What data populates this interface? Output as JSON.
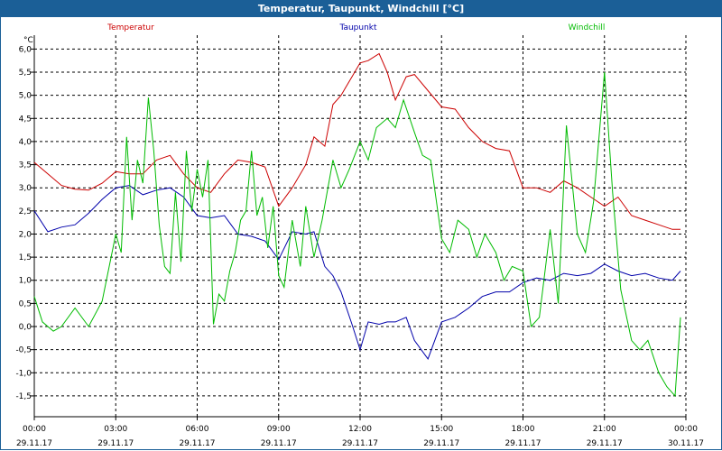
{
  "window": {
    "title": "Temperatur, Taupunkt, Windchill [°C]"
  },
  "chart_data": {
    "type": "line",
    "title": "Temperatur, Taupunkt, Windchill [°C]",
    "ylabel": "°C",
    "ylim": [
      -1.95,
      6.3
    ],
    "yticks": [
      -1.5,
      -1.0,
      -0.5,
      0.0,
      0.5,
      1.0,
      1.5,
      2.0,
      2.5,
      3.0,
      3.5,
      4.0,
      4.5,
      5.0,
      5.5,
      6.0
    ],
    "ytick_labels": [
      "-1,5",
      "-1,0",
      "-0,5",
      "0,0",
      "0,5",
      "1,0",
      "1,5",
      "2,0",
      "2,5",
      "3,0",
      "3,5",
      "4,0",
      "4,5",
      "5,0",
      "5,5",
      "6,0"
    ],
    "xlim": [
      0,
      24
    ],
    "xticks": [
      0,
      3,
      6,
      9,
      12,
      15,
      18,
      21,
      24
    ],
    "xtick_time_labels": [
      "00:00",
      "03:00",
      "06:00",
      "09:00",
      "12:00",
      "15:00",
      "18:00",
      "21:00",
      "00:00"
    ],
    "xtick_date_labels": [
      "29.11.17",
      "29.11.17",
      "29.11.17",
      "29.11.17",
      "29.11.17",
      "29.11.17",
      "29.11.17",
      "29.11.17",
      "30.11.17"
    ],
    "grid": true,
    "legend_position": "top",
    "series": [
      {
        "name": "Temperatur",
        "color": "#cc0000",
        "x": [
          0,
          0.5,
          1,
          1.5,
          2,
          2.5,
          3,
          3.5,
          4,
          4.5,
          5,
          5.5,
          6,
          6.5,
          7,
          7.5,
          8,
          8.5,
          9,
          9.5,
          10,
          10.3,
          10.7,
          11,
          11.3,
          11.7,
          12,
          12.3,
          12.7,
          13,
          13.3,
          13.7,
          14,
          14.5,
          15,
          15.5,
          16,
          16.5,
          17,
          17.5,
          18,
          18.5,
          19,
          19.5,
          20,
          20.5,
          21,
          21.5,
          22,
          22.5,
          23,
          23.5,
          23.8
        ],
        "y": [
          3.55,
          3.3,
          3.05,
          2.97,
          2.95,
          3.1,
          3.35,
          3.3,
          3.3,
          3.6,
          3.7,
          3.3,
          3.0,
          2.9,
          3.3,
          3.6,
          3.55,
          3.45,
          2.6,
          3.0,
          3.5,
          4.1,
          3.9,
          4.8,
          5.0,
          5.4,
          5.7,
          5.75,
          5.9,
          5.5,
          4.9,
          5.4,
          5.45,
          5.1,
          4.75,
          4.7,
          4.3,
          4.0,
          3.85,
          3.8,
          3.0,
          3.0,
          2.9,
          3.15,
          3.0,
          2.8,
          2.6,
          2.8,
          2.4,
          2.3,
          2.2,
          2.1,
          2.1
        ]
      },
      {
        "name": "Taupunkt",
        "color": "#0000aa",
        "x": [
          0,
          0.5,
          1,
          1.5,
          2,
          2.5,
          3,
          3.5,
          4,
          4.5,
          5,
          5.5,
          6,
          6.5,
          7,
          7.5,
          8,
          8.5,
          9,
          9.5,
          10,
          10.3,
          10.7,
          11,
          11.3,
          11.7,
          12,
          12.3,
          12.7,
          13,
          13.3,
          13.7,
          14,
          14.5,
          15,
          15.5,
          16,
          16.5,
          17,
          17.5,
          18,
          18.5,
          19,
          19.5,
          20,
          20.5,
          21,
          21.5,
          22,
          22.5,
          23,
          23.5,
          23.8
        ],
        "y": [
          2.5,
          2.05,
          2.15,
          2.2,
          2.45,
          2.75,
          3.0,
          3.05,
          2.85,
          2.95,
          3.0,
          2.8,
          2.4,
          2.35,
          2.4,
          2.0,
          1.95,
          1.85,
          1.45,
          2.05,
          2.0,
          2.05,
          1.3,
          1.1,
          0.75,
          0.05,
          -0.5,
          0.1,
          0.05,
          0.1,
          0.1,
          0.2,
          -0.3,
          -0.7,
          0.1,
          0.2,
          0.4,
          0.65,
          0.75,
          0.75,
          0.95,
          1.05,
          1.0,
          1.15,
          1.1,
          1.15,
          1.35,
          1.2,
          1.1,
          1.15,
          1.05,
          1.0,
          1.2
        ]
      },
      {
        "name": "Windchill",
        "color": "#00bb00",
        "x": [
          0,
          0.3,
          0.7,
          1,
          1.5,
          2,
          2.5,
          3,
          3.2,
          3.4,
          3.6,
          3.8,
          4,
          4.2,
          4.4,
          4.6,
          4.8,
          5,
          5.2,
          5.4,
          5.6,
          5.8,
          6,
          6.2,
          6.4,
          6.6,
          6.8,
          7,
          7.2,
          7.4,
          7.6,
          7.8,
          8,
          8.2,
          8.4,
          8.6,
          8.8,
          9,
          9.2,
          9.5,
          9.8,
          10,
          10.3,
          10.6,
          11,
          11.3,
          11.6,
          12,
          12.3,
          12.6,
          13,
          13.3,
          13.6,
          14,
          14.3,
          14.6,
          15,
          15.3,
          15.6,
          16,
          16.3,
          16.6,
          17,
          17.3,
          17.6,
          18,
          18.3,
          18.6,
          19,
          19.3,
          19.6,
          20,
          20.3,
          20.6,
          21,
          21.3,
          21.6,
          22,
          22.3,
          22.6,
          23,
          23.3,
          23.6,
          23.8
        ],
        "y": [
          0.65,
          0.1,
          -0.1,
          0.0,
          0.4,
          0.0,
          0.55,
          2.0,
          1.6,
          4.1,
          2.3,
          3.6,
          3.1,
          4.95,
          3.8,
          2.2,
          1.3,
          1.15,
          2.9,
          1.4,
          3.8,
          2.5,
          3.4,
          2.8,
          3.6,
          0.05,
          0.7,
          0.55,
          1.2,
          1.6,
          2.3,
          2.5,
          3.8,
          2.4,
          2.8,
          1.7,
          2.6,
          1.1,
          0.85,
          2.3,
          1.3,
          2.6,
          1.5,
          2.3,
          3.6,
          3.0,
          3.4,
          4.0,
          3.6,
          4.3,
          4.5,
          4.3,
          4.9,
          4.2,
          3.7,
          3.6,
          1.9,
          1.6,
          2.3,
          2.1,
          1.5,
          2.0,
          1.6,
          1.0,
          1.3,
          1.2,
          0.0,
          0.2,
          2.1,
          0.5,
          4.35,
          2.0,
          1.6,
          2.7,
          5.5,
          2.9,
          0.8,
          -0.3,
          -0.5,
          -0.3,
          -1.0,
          -1.3,
          -1.5,
          0.2
        ]
      }
    ]
  }
}
